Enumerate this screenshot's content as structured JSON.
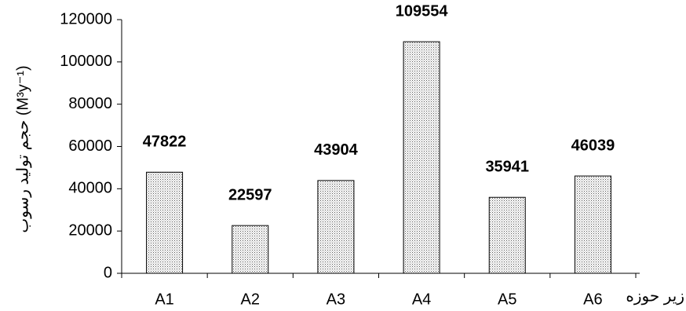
{
  "chart_data": {
    "type": "bar",
    "y_label": "حجم تولید رسوب (M³y⁻¹)",
    "x_label": "زیر حوزه",
    "categories": [
      "A1",
      "A2",
      "A3",
      "A4",
      "A5",
      "A6"
    ],
    "values": [
      47822,
      22597,
      43904,
      109554,
      35941,
      46039
    ],
    "color": "#d9d9d9",
    "ylim": [
      0,
      120000
    ],
    "yticks": [
      0,
      20000,
      40000,
      60000,
      80000,
      100000,
      120000
    ],
    "grid": false
  }
}
